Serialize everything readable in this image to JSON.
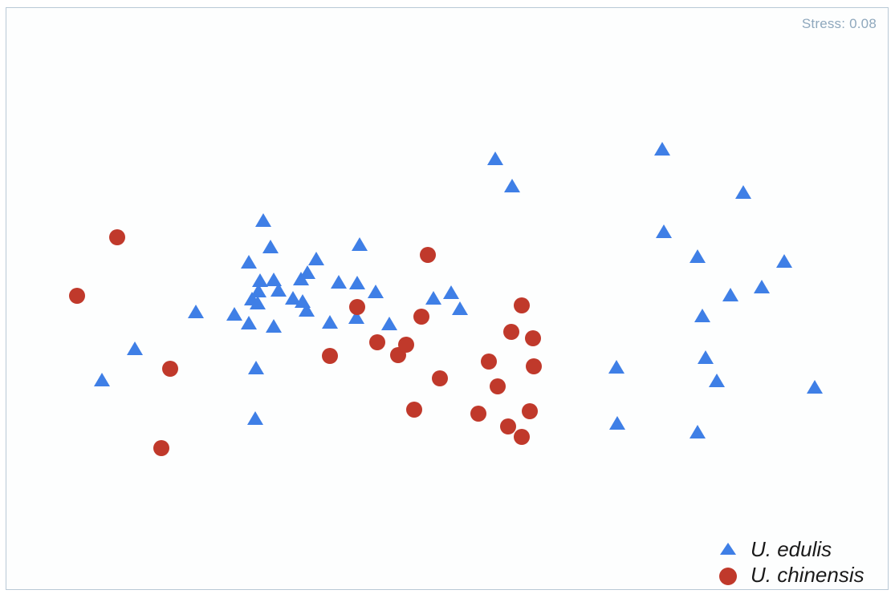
{
  "stress_text": "Stress: 0.08",
  "colors": {
    "edulis": "#3f7fe6",
    "chinensis": "#c0392b",
    "border": "#b9c9d6"
  },
  "chart_data": {
    "type": "scatter",
    "title": "",
    "xlabel": "",
    "ylabel": "",
    "grid": false,
    "legend_position": "bottom-right",
    "series": [
      {
        "name": "U. edulis",
        "marker": "triangle",
        "color": "#3f7fe6",
        "points": [
          [
            127,
            474
          ],
          [
            168,
            435
          ],
          [
            244,
            389
          ],
          [
            292,
            392
          ],
          [
            310,
            403
          ],
          [
            319,
            459
          ],
          [
            318,
            522
          ],
          [
            328,
            275
          ],
          [
            337,
            308
          ],
          [
            310,
            327
          ],
          [
            324,
            350
          ],
          [
            341,
            349
          ],
          [
            347,
            362
          ],
          [
            322,
            363
          ],
          [
            314,
            373
          ],
          [
            321,
            378
          ],
          [
            341,
            407
          ],
          [
            365,
            372
          ],
          [
            375,
            348
          ],
          [
            383,
            340
          ],
          [
            394,
            323
          ],
          [
            377,
            376
          ],
          [
            382,
            387
          ],
          [
            411,
            402
          ],
          [
            422,
            352
          ],
          [
            445,
            353
          ],
          [
            448,
            305
          ],
          [
            468,
            364
          ],
          [
            444,
            396
          ],
          [
            485,
            404
          ],
          [
            540,
            372
          ],
          [
            562,
            365
          ],
          [
            573,
            385
          ],
          [
            617,
            198
          ],
          [
            638,
            232
          ],
          [
            768,
            458
          ],
          [
            769,
            528
          ],
          [
            825,
            186
          ],
          [
            827,
            289
          ],
          [
            869,
            320
          ],
          [
            910,
            368
          ],
          [
            875,
            394
          ],
          [
            879,
            446
          ],
          [
            893,
            475
          ],
          [
            869,
            539
          ],
          [
            926,
            240
          ],
          [
            949,
            358
          ],
          [
            977,
            326
          ],
          [
            1015,
            483
          ]
        ]
      },
      {
        "name": "U. chinensis",
        "marker": "circle",
        "color": "#c0392b",
        "points": [
          [
            146,
            296
          ],
          [
            96,
            369
          ],
          [
            212,
            460
          ],
          [
            201,
            559
          ],
          [
            411,
            444
          ],
          [
            445,
            383
          ],
          [
            470,
            427
          ],
          [
            496,
            443
          ],
          [
            506,
            430
          ],
          [
            516,
            511
          ],
          [
            525,
            395
          ],
          [
            533,
            318
          ],
          [
            548,
            472
          ],
          [
            596,
            516
          ],
          [
            609,
            451
          ],
          [
            620,
            482
          ],
          [
            633,
            532
          ],
          [
            650,
            545
          ],
          [
            660,
            513
          ],
          [
            650,
            381
          ],
          [
            637,
            414
          ],
          [
            664,
            422
          ],
          [
            665,
            457
          ]
        ]
      }
    ]
  }
}
